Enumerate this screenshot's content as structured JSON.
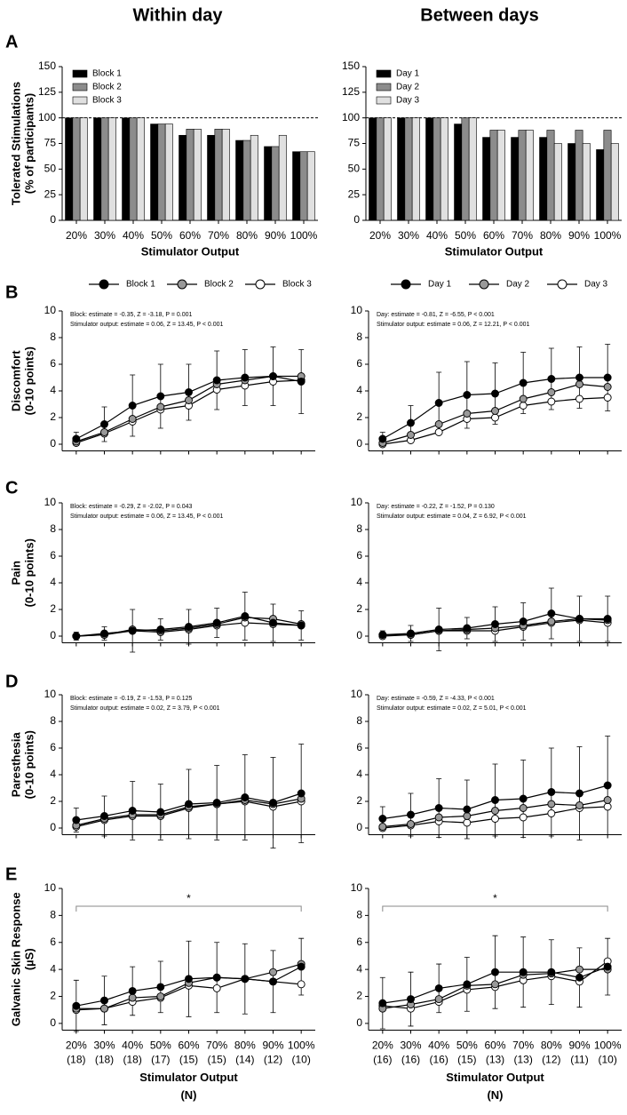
{
  "columns": [
    "Within day",
    "Between days"
  ],
  "panel_labels": [
    "A",
    "B",
    "C",
    "D",
    "E"
  ],
  "chart_data": [
    {
      "type": "bar",
      "ylabel": [
        "Tolerated Stimulations",
        "(% of participants)"
      ],
      "xlabel": "Stimulator Output",
      "categories": [
        "20%",
        "30%",
        "40%",
        "50%",
        "60%",
        "70%",
        "80%",
        "90%",
        "100%"
      ],
      "ylim": [
        0,
        150
      ],
      "yticks": [
        0,
        25,
        50,
        75,
        100,
        125,
        150
      ],
      "refline": 100,
      "legend": "upper left",
      "series": [
        {
          "name": "Block 1",
          "color": "#000000",
          "values": [
            100,
            100,
            100,
            94,
            83,
            83,
            78,
            72,
            67
          ]
        },
        {
          "name": "Block 2",
          "color": "#8c8c8c",
          "values": [
            100,
            100,
            100,
            94,
            89,
            89,
            78,
            72,
            67
          ]
        },
        {
          "name": "Block 3",
          "color": "#e0e0e0",
          "values": [
            100,
            100,
            100,
            94,
            89,
            89,
            83,
            83,
            67
          ]
        }
      ]
    },
    {
      "type": "bar",
      "xlabel": "Stimulator Output",
      "categories": [
        "20%",
        "30%",
        "40%",
        "50%",
        "60%",
        "70%",
        "80%",
        "90%",
        "100%"
      ],
      "ylim": [
        0,
        150
      ],
      "yticks": [
        0,
        25,
        50,
        75,
        100,
        125,
        150
      ],
      "refline": 100,
      "legend": "upper left",
      "series": [
        {
          "name": "Day 1",
          "color": "#000000",
          "values": [
            100,
            100,
            100,
            94,
            81,
            81,
            81,
            75,
            69
          ]
        },
        {
          "name": "Day 2",
          "color": "#8c8c8c",
          "values": [
            100,
            100,
            100,
            100,
            88,
            88,
            88,
            88,
            88
          ]
        },
        {
          "name": "Day 3",
          "color": "#e0e0e0",
          "values": [
            100,
            100,
            100,
            100,
            88,
            88,
            75,
            75,
            75
          ]
        }
      ]
    },
    {
      "type": "line",
      "ylabel": [
        "Discomfort",
        "(0-10 points)"
      ],
      "ylim": [
        -0.5,
        10
      ],
      "yticks": [
        0,
        2,
        4,
        6,
        8,
        10
      ],
      "legend": "top",
      "annotations": [
        "Block: estimate = -0.35, Z = -3.18, P = 0.001",
        "Stimulator output: estimate = 0.06, Z = 13.45, P < 0.001"
      ],
      "series": [
        {
          "name": "Block 1",
          "color": "#000000",
          "values": [
            0.4,
            1.5,
            2.9,
            3.6,
            3.9,
            4.8,
            5.0,
            5.1,
            4.7
          ],
          "errors": [
            0.5,
            1.3,
            2.3,
            2.4,
            2.1,
            2.2,
            2.1,
            2.2,
            2.4
          ]
        },
        {
          "name": "Block 2",
          "color": "#999999",
          "values": [
            0.2,
            0.9,
            1.9,
            2.8,
            3.3,
            4.5,
            4.8,
            5.1,
            5.1
          ]
        },
        {
          "name": "Block 3",
          "color": "#ffffff",
          "values": [
            0.1,
            0.8,
            1.7,
            2.6,
            2.9,
            4.1,
            4.4,
            4.7,
            4.8
          ]
        }
      ]
    },
    {
      "type": "line",
      "ylim": [
        -0.5,
        10
      ],
      "yticks": [
        0,
        2,
        4,
        6,
        8,
        10
      ],
      "legend": "top",
      "annotations": [
        "Day: estimate = -0.81, Z = -6.55, P < 0.001",
        "Stimulator output: estimate = 0.06, Z = 12.21, P < 0.001"
      ],
      "series": [
        {
          "name": "Day 1",
          "color": "#000000",
          "values": [
            0.4,
            1.6,
            3.1,
            3.7,
            3.8,
            4.6,
            4.9,
            5.0,
            5.0
          ],
          "errors": [
            0.5,
            1.3,
            2.3,
            2.5,
            2.3,
            2.3,
            2.3,
            2.3,
            2.5
          ]
        },
        {
          "name": "Day 2",
          "color": "#999999",
          "values": [
            0.1,
            0.7,
            1.5,
            2.3,
            2.5,
            3.4,
            3.9,
            4.5,
            4.3
          ]
        },
        {
          "name": "Day 3",
          "color": "#ffffff",
          "values": [
            0.0,
            0.3,
            0.9,
            1.9,
            2.0,
            2.9,
            3.2,
            3.4,
            3.5
          ]
        }
      ]
    },
    {
      "type": "line",
      "ylabel": [
        "Pain",
        "(0-10 points)"
      ],
      "ylim": [
        -0.5,
        10
      ],
      "yticks": [
        0,
        2,
        4,
        6,
        8,
        10
      ],
      "annotations": [
        "Block: estimate = -0.29, Z = -2.02, P = 0.043",
        "Stimulator output: estimate = 0.06, Z = 13.45, P < 0.001"
      ],
      "series": [
        {
          "color": "#000000",
          "values": [
            0.0,
            0.2,
            0.4,
            0.5,
            0.7,
            1.0,
            1.5,
            1.0,
            0.8
          ],
          "errors": [
            0.3,
            0.5,
            1.6,
            0.8,
            1.3,
            1.1,
            1.8,
            1.4,
            1.1
          ]
        },
        {
          "color": "#999999",
          "values": [
            0.0,
            0.1,
            0.5,
            0.4,
            0.6,
            0.9,
            1.4,
            1.3,
            0.9
          ]
        },
        {
          "color": "#ffffff",
          "values": [
            0.0,
            0.1,
            0.4,
            0.3,
            0.5,
            0.8,
            1.0,
            0.9,
            0.8
          ]
        }
      ]
    },
    {
      "type": "line",
      "ylim": [
        -0.5,
        10
      ],
      "yticks": [
        0,
        2,
        4,
        6,
        8,
        10
      ],
      "annotations": [
        "Day: estimate = -0.22, Z = -1.52, P = 0.130",
        "Stimulator output: estimate = 0.04, Z = 6.92, P < 0.001"
      ],
      "series": [
        {
          "color": "#000000",
          "values": [
            0.1,
            0.2,
            0.5,
            0.6,
            0.9,
            1.1,
            1.7,
            1.3,
            1.3
          ],
          "errors": [
            0.3,
            0.6,
            1.6,
            0.8,
            1.3,
            1.4,
            1.9,
            1.7,
            1.7
          ]
        },
        {
          "color": "#999999",
          "values": [
            0.1,
            0.1,
            0.4,
            0.5,
            0.6,
            0.8,
            1.1,
            1.3,
            1.2
          ]
        },
        {
          "color": "#ffffff",
          "values": [
            0.0,
            0.1,
            0.4,
            0.4,
            0.4,
            0.7,
            1.0,
            1.2,
            1.0
          ]
        }
      ]
    },
    {
      "type": "line",
      "ylabel": [
        "Paresthesia",
        "(0-10 points)"
      ],
      "ylim": [
        -0.5,
        10
      ],
      "yticks": [
        0,
        2,
        4,
        6,
        8,
        10
      ],
      "annotations": [
        "Block: estimate = -0.19, Z = -1.53, P = 0.125",
        "Stimulator output: estimate = 0.02, Z = 3.79, P < 0.001"
      ],
      "series": [
        {
          "color": "#000000",
          "values": [
            0.6,
            0.9,
            1.3,
            1.2,
            1.8,
            1.9,
            2.3,
            1.9,
            2.6
          ],
          "errors": [
            0.9,
            1.5,
            2.2,
            2.1,
            2.6,
            2.8,
            3.2,
            3.4,
            3.7
          ]
        },
        {
          "color": "#999999",
          "values": [
            0.2,
            0.7,
            1.0,
            1.0,
            1.6,
            1.8,
            2.1,
            1.8,
            2.2
          ]
        },
        {
          "color": "#ffffff",
          "values": [
            0.1,
            0.6,
            0.9,
            0.9,
            1.5,
            1.8,
            2.0,
            1.6,
            2.0
          ]
        }
      ]
    },
    {
      "type": "line",
      "ylim": [
        -0.5,
        10
      ],
      "yticks": [
        0,
        2,
        4,
        6,
        8,
        10
      ],
      "annotations": [
        "Day: estimate = -0.59, Z = -4.33, P < 0.001",
        "Stimulator output: estimate = 0.02, Z = 5.01, P < 0.001"
      ],
      "series": [
        {
          "color": "#000000",
          "values": [
            0.7,
            1.0,
            1.5,
            1.4,
            2.1,
            2.2,
            2.7,
            2.6,
            3.2
          ],
          "errors": [
            0.9,
            1.6,
            2.2,
            2.2,
            2.7,
            2.9,
            3.3,
            3.5,
            3.7
          ]
        },
        {
          "color": "#999999",
          "values": [
            0.1,
            0.3,
            0.8,
            0.9,
            1.3,
            1.5,
            1.8,
            1.7,
            2.1
          ]
        },
        {
          "color": "#ffffff",
          "values": [
            0.0,
            0.2,
            0.5,
            0.4,
            0.7,
            0.8,
            1.1,
            1.5,
            1.6
          ]
        }
      ]
    },
    {
      "type": "line",
      "ylabel": [
        "Galvanic Skin Response",
        "(µS)"
      ],
      "xlabel": "Stimulator Output",
      "xlabel2": "(N)",
      "categories": [
        "20%",
        "30%",
        "40%",
        "50%",
        "60%",
        "70%",
        "80%",
        "90%",
        "100%"
      ],
      "n_labels": [
        "(18)",
        "(18)",
        "(18)",
        "(17)",
        "(15)",
        "(15)",
        "(14)",
        "(12)",
        "(10)"
      ],
      "ylim": [
        -0.5,
        10
      ],
      "yticks": [
        0,
        2,
        4,
        6,
        8,
        10
      ],
      "significance": "*",
      "series": [
        {
          "color": "#000000",
          "values": [
            1.3,
            1.7,
            2.4,
            2.7,
            3.3,
            3.4,
            3.3,
            3.1,
            4.2
          ],
          "errors": [
            1.9,
            1.8,
            1.8,
            1.9,
            2.8,
            2.6,
            2.6,
            2.3,
            2.1
          ]
        },
        {
          "color": "#999999",
          "values": [
            1.1,
            1.1,
            1.9,
            2.0,
            3.0,
            3.4,
            3.3,
            3.8,
            4.4
          ]
        },
        {
          "color": "#ffffff",
          "values": [
            1.0,
            1.1,
            1.6,
            1.9,
            2.8,
            2.6,
            3.3,
            3.1,
            2.9
          ]
        }
      ]
    },
    {
      "type": "line",
      "xlabel": "Stimulator Output",
      "xlabel2": "(N)",
      "categories": [
        "20%",
        "30%",
        "40%",
        "50%",
        "60%",
        "70%",
        "80%",
        "90%",
        "100%"
      ],
      "n_labels": [
        "(16)",
        "(16)",
        "(16)",
        "(15)",
        "(13)",
        "(13)",
        "(12)",
        "(11)",
        "(10)"
      ],
      "ylim": [
        -0.5,
        10
      ],
      "yticks": [
        0,
        2,
        4,
        6,
        8,
        10
      ],
      "significance": "*",
      "series": [
        {
          "color": "#000000",
          "values": [
            1.5,
            1.8,
            2.6,
            2.9,
            3.8,
            3.8,
            3.8,
            3.4,
            4.2
          ],
          "errors": [
            1.9,
            2.0,
            1.8,
            2.0,
            2.7,
            2.6,
            2.4,
            2.2,
            2.1
          ]
        },
        {
          "color": "#999999",
          "values": [
            1.1,
            1.4,
            1.8,
            2.8,
            2.9,
            3.6,
            3.7,
            4.0,
            4.0
          ]
        },
        {
          "color": "#ffffff",
          "values": [
            1.3,
            1.1,
            1.6,
            2.5,
            2.7,
            3.2,
            3.5,
            3.1,
            4.6
          ]
        }
      ]
    }
  ]
}
